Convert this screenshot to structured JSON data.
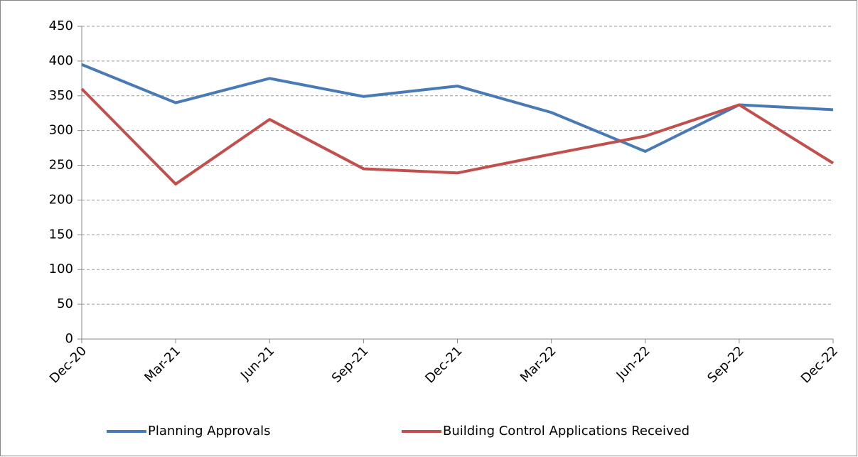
{
  "chart_data": {
    "type": "line",
    "categories": [
      "Dec-20",
      "Mar-21",
      "Jun-21",
      "Sep-21",
      "Dec-21",
      "Mar-22",
      "Jun-22",
      "Sep-22",
      "Dec-22"
    ],
    "series": [
      {
        "name": "Planning Approvals",
        "color": "#4a7ab5",
        "values": [
          395,
          340,
          375,
          349,
          364,
          326,
          270,
          337,
          330
        ]
      },
      {
        "name": "Building Control Applications Received",
        "color": "#c0504d",
        "values": [
          360,
          223,
          316,
          245,
          239,
          266,
          292,
          337,
          253
        ]
      }
    ],
    "ylim": [
      0,
      450
    ],
    "yticks": [
      0,
      50,
      100,
      150,
      200,
      250,
      300,
      350,
      400,
      450
    ],
    "grid": true,
    "legend": "bottom"
  }
}
